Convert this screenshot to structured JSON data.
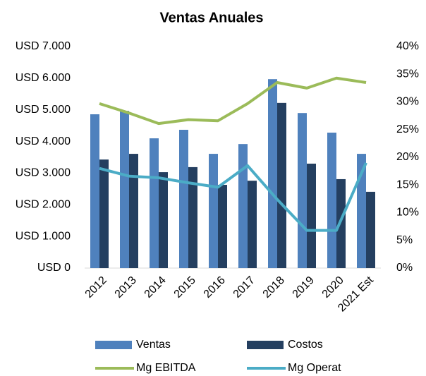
{
  "chart_data": {
    "type": "bar",
    "title": "Ventas Anuales",
    "categories": [
      "2012",
      "2013",
      "2014",
      "2015",
      "2016",
      "2017",
      "2018",
      "2019",
      "2020",
      "2021 Est"
    ],
    "series": [
      {
        "name": "Ventas",
        "type": "bar",
        "color": "#4f81bd",
        "values": [
          4860,
          4970,
          4100,
          4370,
          3610,
          3920,
          5970,
          4900,
          4280,
          3610
        ]
      },
      {
        "name": "Costos",
        "type": "bar",
        "color": "#243f60",
        "values": [
          3430,
          3610,
          3030,
          3190,
          2630,
          2760,
          5220,
          3300,
          2810,
          2410
        ]
      },
      {
        "name": "Mg EBITDA",
        "type": "line",
        "axis": "y2",
        "color": "#9bbb59",
        "values": [
          29.7,
          28,
          26.1,
          26.8,
          26.6,
          29.7,
          33.5,
          32.5,
          34.3,
          33.5
        ]
      },
      {
        "name": "Mg Operat",
        "type": "line",
        "axis": "y2",
        "color": "#4bacc6",
        "values": [
          18,
          16.6,
          16.3,
          15.4,
          14.6,
          18.5,
          12.4,
          6.8,
          6.8,
          19
        ]
      }
    ],
    "ylim": [
      0,
      7000
    ],
    "yticks": [
      {
        "value": 0,
        "label": "USD 0"
      },
      {
        "value": 1000,
        "label": "USD 1.000"
      },
      {
        "value": 2000,
        "label": "USD 2.000"
      },
      {
        "value": 3000,
        "label": "USD 3.000"
      },
      {
        "value": 4000,
        "label": "USD 4.000"
      },
      {
        "value": 5000,
        "label": "USD 5.000"
      },
      {
        "value": 6000,
        "label": "USD 6.000"
      },
      {
        "value": 7000,
        "label": "USD 7.000"
      }
    ],
    "y2lim": [
      0,
      40
    ],
    "y2ticks": [
      {
        "value": 0,
        "label": "0%"
      },
      {
        "value": 5,
        "label": "5%"
      },
      {
        "value": 10,
        "label": "10%"
      },
      {
        "value": 15,
        "label": "15%"
      },
      {
        "value": 20,
        "label": "20%"
      },
      {
        "value": 25,
        "label": "25%"
      },
      {
        "value": 30,
        "label": "30%"
      },
      {
        "value": 35,
        "label": "35%"
      },
      {
        "value": 40,
        "label": "40%"
      }
    ],
    "grid": false
  }
}
